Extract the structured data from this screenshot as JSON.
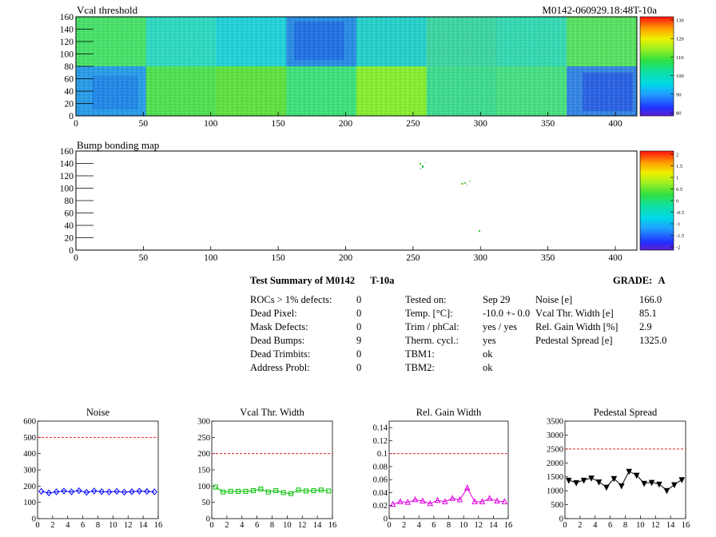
{
  "maps": [
    {
      "title": "Vcal threshold",
      "id_label": "M0142-060929.18:48T-10a",
      "y_ticks": [
        "0",
        "20",
        "40",
        "60",
        "80",
        "100",
        "120",
        "140",
        "160"
      ],
      "x_ticks": [
        "0",
        "50",
        "100",
        "150",
        "200",
        "250",
        "300",
        "350",
        "400"
      ],
      "palette_ticks": [
        "80",
        "90",
        "100",
        "110",
        "120",
        "130"
      ]
    },
    {
      "title": "Bump bonding map",
      "y_ticks": [
        "0",
        "20",
        "40",
        "60",
        "80",
        "100",
        "120",
        "140",
        "160"
      ],
      "x_ticks": [
        "0",
        "50",
        "100",
        "150",
        "200",
        "250",
        "300",
        "350",
        "400"
      ],
      "palette_ticks": [
        "-2",
        "-1.5",
        "-1",
        "-0.5",
        "0",
        "0.5",
        "1",
        "1.5",
        "2"
      ]
    }
  ],
  "summary": {
    "title": "Test Summary of M0142",
    "temp_tag": "T-10a",
    "grade_label": "GRADE:",
    "grade": "A",
    "defects": [
      {
        "label": "ROCs > 1% defects:",
        "value": "0"
      },
      {
        "label": "Dead Pixel:",
        "value": "0"
      },
      {
        "label": "Mask Defects:",
        "value": "0"
      },
      {
        "label": "Dead Bumps:",
        "value": "9"
      },
      {
        "label": "Dead Trimbits:",
        "value": "0"
      },
      {
        "label": "Address Probl:",
        "value": "0"
      }
    ],
    "conditions": [
      {
        "label": "Tested on:",
        "value": "Sep 29"
      },
      {
        "label": "Temp. [°C]:",
        "value": "-10.0 +- 0.0"
      },
      {
        "label": "Trim / phCal:",
        "value": "yes / yes"
      },
      {
        "label": "Therm. cycl.:",
        "value": "yes"
      },
      {
        "label": "TBM1:",
        "value": "ok"
      },
      {
        "label": "TBM2:",
        "value": "ok"
      }
    ],
    "results": [
      {
        "label": "Noise [e]",
        "value": "166.0"
      },
      {
        "label": "Vcal Thr. Width [e]",
        "value": "85.1"
      },
      {
        "label": "Rel. Gain Width [%]",
        "value": "2.9"
      },
      {
        "label": "Pedestal Spread [e]",
        "value": "1325.0"
      }
    ]
  },
  "chart_data": [
    {
      "type": "line",
      "title": "Noise",
      "color": "#0000ff",
      "marker": "diamond",
      "x": [
        0,
        1,
        2,
        3,
        4,
        5,
        6,
        7,
        8,
        9,
        10,
        11,
        12,
        13,
        14,
        15
      ],
      "values": [
        168,
        158,
        165,
        170,
        165,
        172,
        162,
        170,
        166,
        164,
        168,
        163,
        166,
        169,
        167,
        165
      ],
      "threshold": 500,
      "xlim": [
        0,
        16
      ],
      "ylim": [
        0,
        600
      ],
      "x_ticks": [
        0,
        2,
        4,
        6,
        8,
        10,
        12,
        14,
        16
      ],
      "y_ticks": [
        0,
        100,
        200,
        300,
        400,
        500,
        600
      ],
      "y_tick_labels": [
        "0",
        "100",
        "200",
        "300",
        "400",
        "500",
        "600"
      ]
    },
    {
      "type": "line",
      "title": "Vcal Thr. Width",
      "color": "#00c000",
      "marker": "square",
      "x": [
        0,
        1,
        2,
        3,
        4,
        5,
        6,
        7,
        8,
        9,
        10,
        11,
        12,
        13,
        14,
        15
      ],
      "values": [
        97,
        82,
        84,
        84,
        84,
        86,
        91,
        82,
        86,
        80,
        77,
        88,
        85,
        86,
        88,
        85
      ],
      "threshold": 200,
      "xlim": [
        0,
        16
      ],
      "ylim": [
        0,
        300
      ],
      "x_ticks": [
        0,
        2,
        4,
        6,
        8,
        10,
        12,
        14,
        16
      ],
      "y_ticks": [
        0,
        50,
        100,
        150,
        200,
        250,
        300
      ],
      "y_tick_labels": [
        "0",
        "50",
        "100",
        "150",
        "200",
        "250",
        "300"
      ]
    },
    {
      "type": "line",
      "title": "Rel. Gain Width",
      "color": "#e000e0",
      "marker": "triangle",
      "x": [
        0,
        1,
        2,
        3,
        4,
        5,
        6,
        7,
        8,
        9,
        10,
        11,
        12,
        13,
        14,
        15
      ],
      "values": [
        0.022,
        0.026,
        0.025,
        0.029,
        0.027,
        0.023,
        0.028,
        0.026,
        0.031,
        0.029,
        0.047,
        0.026,
        0.026,
        0.031,
        0.027,
        0.026
      ],
      "threshold": 0.1,
      "xlim": [
        0,
        16
      ],
      "ylim": [
        0,
        0.15
      ],
      "x_ticks": [
        0,
        2,
        4,
        6,
        8,
        10,
        12,
        14,
        16
      ],
      "y_ticks": [
        0,
        0.02,
        0.04,
        0.06,
        0.08,
        0.1,
        0.12,
        0.14
      ],
      "y_tick_labels": [
        "0",
        "0.02",
        "0.04",
        "0.06",
        "0.08",
        "0.1",
        "0.12",
        "0.14"
      ]
    },
    {
      "type": "line",
      "title": "Pedestal Spread",
      "color": "#000000",
      "marker": "triangle-down",
      "x": [
        0,
        1,
        2,
        3,
        4,
        5,
        6,
        7,
        8,
        9,
        10,
        11,
        12,
        13,
        14,
        15
      ],
      "values": [
        1380,
        1290,
        1380,
        1460,
        1320,
        1130,
        1440,
        1180,
        1700,
        1560,
        1270,
        1300,
        1240,
        1010,
        1220,
        1400
      ],
      "threshold": 2500,
      "xlim": [
        0,
        16
      ],
      "ylim": [
        0,
        3500
      ],
      "x_ticks": [
        0,
        2,
        4,
        6,
        8,
        10,
        12,
        14,
        16
      ],
      "y_ticks": [
        0,
        500,
        1000,
        1500,
        2000,
        2500,
        3000,
        3500
      ],
      "y_tick_labels": [
        "0",
        "500",
        "1000",
        "1500",
        "2000",
        "2500",
        "3000",
        "3500"
      ]
    }
  ]
}
